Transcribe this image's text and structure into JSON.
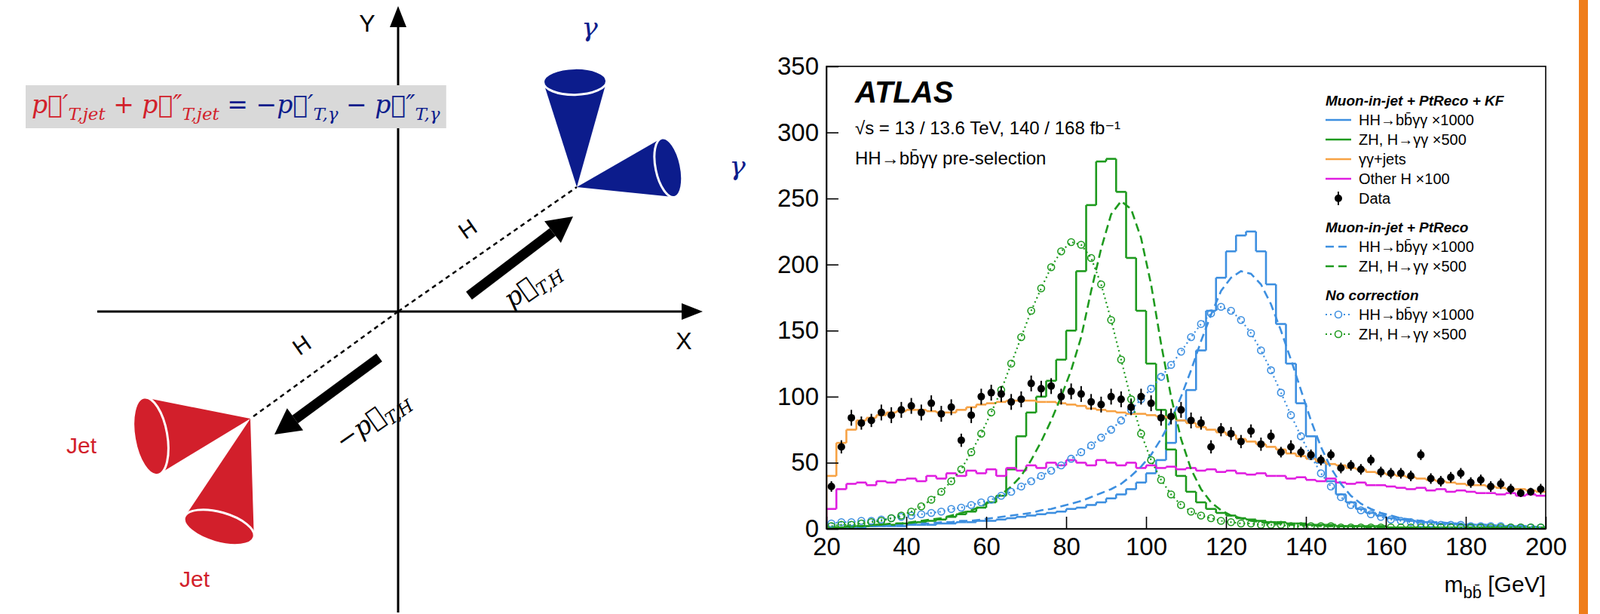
{
  "diagram": {
    "equation": [
      {
        "text": "p⃗′",
        "sub": "T,jet",
        "color": "#d21f2b"
      },
      {
        "text": " + ",
        "color": "#d21f2b"
      },
      {
        "text": "p⃗″",
        "sub": "T,jet",
        "color": "#d21f2b"
      },
      {
        "text": " = −",
        "color": "#0c1c8c"
      },
      {
        "text": "p⃗′",
        "sub": "T,γ",
        "color": "#0c1c8c"
      },
      {
        "text": " − ",
        "color": "#0c1c8c"
      },
      {
        "text": "p⃗″",
        "sub": "T,γ",
        "color": "#0c1c8c"
      }
    ],
    "axes": {
      "x": "X",
      "y": "Y"
    },
    "higgs": [
      "H",
      "H"
    ],
    "momentum": [
      {
        "text": "p⃗",
        "sub": "T,H"
      },
      {
        "text": "−p⃗",
        "sub": "T,H"
      }
    ],
    "photons": [
      "γ",
      "γ"
    ],
    "jets": [
      "Jet",
      "Jet"
    ]
  },
  "chart_data": {
    "type": "histogram",
    "title": "ATLAS",
    "annotations": [
      "√s = 13 / 13.6 TeV, 140 / 168 fb⁻¹",
      "HH→bb̄γγ pre-selection"
    ],
    "xlabel": [
      "m",
      "bb̄",
      " [GeV]"
    ],
    "xlim": [
      20,
      200
    ],
    "xticks": [
      20,
      40,
      60,
      80,
      100,
      120,
      140,
      160,
      180,
      200
    ],
    "ylim": [
      0,
      350
    ],
    "yticks": [
      0,
      50,
      100,
      150,
      200,
      250,
      300,
      350
    ],
    "grid": false,
    "legend": "upper right",
    "bins": [
      20,
      22.5,
      25,
      27.5,
      30,
      32.5,
      35,
      37.5,
      40,
      42.5,
      45,
      47.5,
      50,
      52.5,
      55,
      57.5,
      60,
      62.5,
      65,
      67.5,
      70,
      72.5,
      75,
      77.5,
      80,
      82.5,
      85,
      87.5,
      90,
      92.5,
      95,
      97.5,
      100,
      102.5,
      105,
      107.5,
      110,
      112.5,
      115,
      117.5,
      120,
      122.5,
      125,
      127.5,
      130,
      132.5,
      135,
      137.5,
      140,
      142.5,
      145,
      147.5,
      150,
      152.5,
      155,
      157.5,
      160,
      162.5,
      165,
      167.5,
      170,
      172.5,
      175,
      177.5,
      180,
      182.5,
      185,
      187.5,
      190,
      192.5,
      195,
      197.5,
      200
    ],
    "series": [
      {
        "name": "HH→bb̄γγ ×1000",
        "group": "Muon-in-jet + PtReco + KF",
        "type": "step",
        "color": "#3d8fe0",
        "line_style": "solid",
        "values": [
          1,
          1,
          1,
          1,
          2,
          2,
          2,
          2,
          3,
          3,
          3,
          4,
          4,
          5,
          5,
          6,
          6,
          7,
          8,
          9,
          10,
          11,
          12,
          13,
          15,
          16,
          18,
          20,
          23,
          26,
          30,
          35,
          42,
          52,
          65,
          82,
          105,
          135,
          165,
          190,
          210,
          222,
          225,
          210,
          185,
          155,
          125,
          95,
          70,
          50,
          36,
          26,
          20,
          15,
          12,
          10,
          8,
          7,
          6,
          5,
          5,
          4,
          4,
          3,
          3,
          3,
          2,
          2,
          2,
          2,
          1,
          1
        ]
      },
      {
        "name": "ZH, H→γγ ×500",
        "group": "Muon-in-jet + PtReco + KF",
        "type": "step",
        "color": "#1e9a1e",
        "line_style": "solid",
        "values": [
          1,
          1,
          2,
          2,
          2,
          3,
          3,
          4,
          4,
          5,
          6,
          7,
          9,
          11,
          13,
          16,
          20,
          25,
          45,
          70,
          88,
          100,
          112,
          128,
          150,
          195,
          245,
          278,
          280,
          255,
          205,
          165,
          125,
          90,
          60,
          40,
          28,
          20,
          15,
          12,
          10,
          8,
          7,
          6,
          5,
          5,
          4,
          4,
          3,
          3,
          3,
          2,
          2,
          2,
          2,
          2,
          1,
          1,
          1,
          1,
          1,
          1,
          1,
          1,
          1,
          1,
          1,
          1,
          1,
          1,
          1,
          1
        ]
      },
      {
        "name": "γγ+jets",
        "group": "Muon-in-jet + PtReco + KF",
        "type": "step",
        "color": "#f7a244",
        "line_style": "solid",
        "values": [
          40,
          65,
          75,
          82,
          84,
          86,
          88,
          89,
          90,
          90,
          89,
          88,
          88,
          90,
          92,
          94,
          95,
          96,
          97,
          97,
          97,
          96,
          96,
          95,
          94,
          93,
          91,
          90,
          89,
          88,
          87,
          87,
          86,
          85,
          84,
          82,
          80,
          77,
          75,
          73,
          71,
          68,
          66,
          64,
          62,
          60,
          57,
          55,
          53,
          51,
          49,
          48,
          46,
          45,
          43,
          42,
          41,
          40,
          39,
          38,
          37,
          36,
          35,
          34,
          33,
          33,
          32,
          31,
          30,
          30,
          29,
          28
        ]
      },
      {
        "name": "Other H ×100",
        "group": "Muon-in-jet + PtReco + KF",
        "type": "step",
        "color": "#e01ee0",
        "line_style": "solid",
        "values": [
          15,
          30,
          34,
          35,
          33,
          36,
          35,
          37,
          38,
          36,
          40,
          38,
          42,
          40,
          44,
          42,
          45,
          40,
          46,
          44,
          48,
          46,
          50,
          48,
          52,
          50,
          48,
          52,
          50,
          48,
          50,
          46,
          48,
          46,
          47,
          45,
          46,
          44,
          45,
          43,
          44,
          42,
          41,
          42,
          40,
          40,
          38,
          39,
          37,
          36,
          38,
          35,
          34,
          35,
          33,
          33,
          32,
          31,
          30,
          31,
          29,
          30,
          28,
          29,
          28,
          27,
          27,
          26,
          27,
          25,
          26,
          25
        ]
      },
      {
        "name": "Data",
        "group": "Muon-in-jet + PtReco + KF",
        "type": "scatter",
        "color": "#000000",
        "marker": "circle",
        "values": [
          32,
          62,
          84,
          80,
          82,
          88,
          86,
          90,
          93,
          88,
          95,
          87,
          92,
          67,
          86,
          100,
          103,
          102,
          96,
          98,
          110,
          106,
          108,
          100,
          104,
          102,
          96,
          94,
          100,
          98,
          92,
          100,
          95,
          84,
          85,
          90,
          82,
          80,
          62,
          75,
          72,
          66,
          74,
          64,
          70,
          58,
          62,
          58,
          56,
          52,
          56,
          46,
          48,
          45,
          52,
          43,
          42,
          42,
          40,
          56,
          38,
          36,
          39,
          42,
          35,
          37,
          32,
          34,
          30,
          27,
          28,
          30
        ],
        "errors": [
          4,
          5,
          6,
          5,
          5,
          6,
          6,
          6,
          6,
          6,
          6,
          6,
          6,
          5,
          6,
          6,
          6,
          6,
          6,
          6,
          6,
          6,
          6,
          6,
          6,
          6,
          6,
          6,
          6,
          6,
          6,
          6,
          6,
          6,
          6,
          6,
          6,
          5,
          5,
          5,
          5,
          5,
          5,
          5,
          5,
          4,
          5,
          4,
          4,
          4,
          4,
          4,
          4,
          4,
          4,
          4,
          4,
          4,
          4,
          4,
          4,
          4,
          4,
          4,
          4,
          4,
          4,
          4,
          4,
          3,
          3,
          4
        ]
      },
      {
        "name": "HH→bb̄γγ ×1000",
        "group": "Muon-in-jet + PtReco",
        "type": "line",
        "color": "#3d8fe0",
        "line_style": "dashed",
        "values": [
          1,
          1,
          1,
          2,
          2,
          2,
          3,
          3,
          3,
          4,
          4,
          5,
          5,
          6,
          6,
          7,
          8,
          9,
          10,
          11,
          12,
          14,
          15,
          17,
          19,
          21,
          24,
          27,
          30,
          34,
          40,
          47,
          56,
          68,
          82,
          100,
          120,
          142,
          162,
          180,
          190,
          195,
          193,
          185,
          170,
          150,
          128,
          105,
          82,
          62,
          46,
          34,
          25,
          19,
          15,
          12,
          10,
          8,
          7,
          6,
          5,
          5,
          4,
          4,
          3,
          3,
          3,
          2,
          2,
          2,
          2,
          1
        ]
      },
      {
        "name": "ZH, H→γγ ×500",
        "group": "Muon-in-jet + PtReco",
        "type": "line",
        "color": "#1e9a1e",
        "line_style": "dashed",
        "values": [
          1,
          1,
          2,
          2,
          3,
          3,
          4,
          4,
          5,
          6,
          7,
          8,
          10,
          12,
          14,
          17,
          21,
          26,
          32,
          40,
          52,
          66,
          82,
          100,
          120,
          145,
          180,
          212,
          238,
          248,
          242,
          220,
          185,
          140,
          100,
          68,
          45,
          30,
          20,
          14,
          10,
          8,
          6,
          5,
          4,
          4,
          3,
          3,
          3,
          2,
          2,
          2,
          2,
          2,
          1,
          1,
          1,
          1,
          1,
          1,
          1,
          1,
          1,
          1,
          1,
          1,
          1,
          1,
          1,
          1,
          1,
          1
        ]
      },
      {
        "name": "HH→bb̄γγ ×1000",
        "group": "No correction",
        "type": "line",
        "color": "#3d8fe0",
        "line_style": "dotted",
        "marker": "circle",
        "values": [
          4,
          5,
          5,
          6,
          6,
          7,
          8,
          9,
          10,
          11,
          12,
          13,
          15,
          16,
          18,
          20,
          22,
          25,
          28,
          32,
          36,
          40,
          44,
          48,
          53,
          58,
          63,
          69,
          75,
          82,
          90,
          98,
          106,
          115,
          124,
          134,
          145,
          155,
          163,
          168,
          165,
          158,
          148,
          135,
          120,
          103,
          86,
          70,
          55,
          42,
          32,
          24,
          18,
          14,
          11,
          9,
          7,
          6,
          5,
          4,
          4,
          3,
          3,
          3,
          2,
          2,
          2,
          2,
          1,
          1,
          1,
          1
        ]
      },
      {
        "name": "ZH, H→γγ ×500",
        "group": "No correction",
        "type": "line",
        "color": "#1e9a1e",
        "line_style": "dotted",
        "marker": "circle",
        "values": [
          2,
          3,
          3,
          4,
          5,
          6,
          8,
          10,
          13,
          17,
          22,
          28,
          36,
          45,
          58,
          72,
          88,
          105,
          125,
          145,
          165,
          182,
          198,
          210,
          217,
          215,
          205,
          185,
          158,
          128,
          98,
          72,
          52,
          37,
          26,
          18,
          13,
          10,
          8,
          6,
          5,
          4,
          4,
          3,
          3,
          3,
          2,
          2,
          2,
          2,
          2,
          1,
          1,
          1,
          1,
          1,
          1,
          1,
          1,
          1,
          1,
          1,
          1,
          1,
          1,
          1,
          1,
          1,
          1,
          1,
          1,
          1
        ]
      }
    ]
  }
}
